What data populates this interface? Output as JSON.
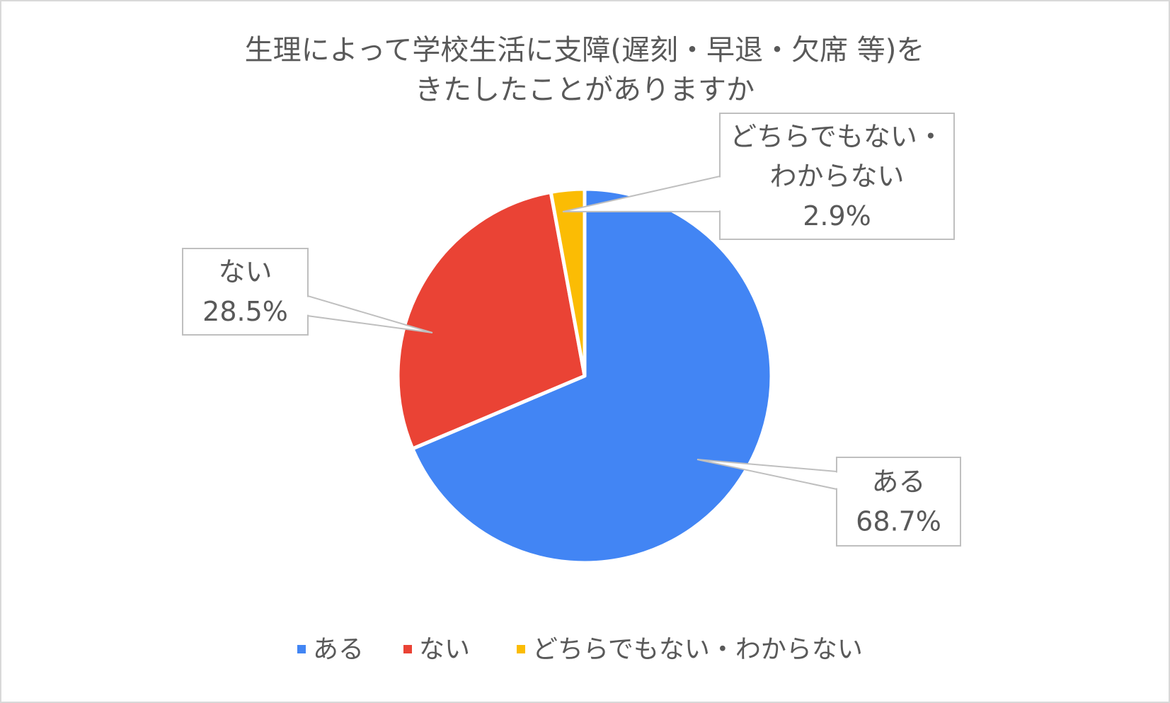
{
  "chart_data": {
    "type": "pie",
    "title": "生理によって学校生活に支障(遅刻・早退・欠席 等)をきたしたことがありますか",
    "title_lines": [
      "生理によって学校生活に支障(遅刻・早退・欠席 等)を",
      "きたしたことがありますか"
    ],
    "categories": [
      "ある",
      "ない",
      "どちらでもない・わからない"
    ],
    "values": [
      68.7,
      28.5,
      2.9
    ],
    "unit": "%",
    "colors": [
      "#4285F4",
      "#EA4335",
      "#FBBC04"
    ],
    "data_labels": [
      {
        "lines": [
          "ある",
          "68.7%"
        ]
      },
      {
        "lines": [
          "ない",
          "28.5%"
        ]
      },
      {
        "lines": [
          "どちらでもない・",
          "わからない",
          "2.9%"
        ]
      }
    ],
    "legend": {
      "position": "bottom",
      "entries": [
        "ある",
        "ない",
        "どちらでもない・わからない"
      ]
    }
  }
}
